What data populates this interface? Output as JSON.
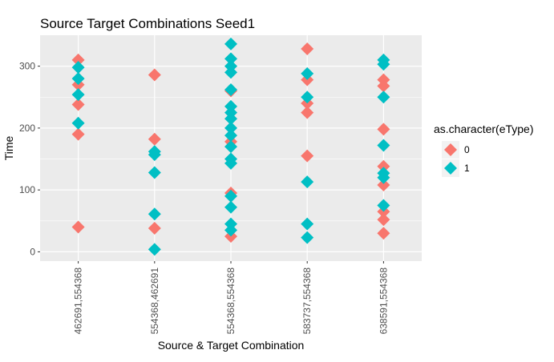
{
  "chart_data": {
    "type": "scatter",
    "title": "Source Target Combinations Seed1",
    "xlabel": "Source & Target Combination",
    "ylabel": "Time",
    "categories": [
      "462691,554368",
      "554368,462691",
      "554368,554368",
      "583737,554368",
      "638591,554368"
    ],
    "ylim": [
      -15,
      350
    ],
    "yticks": [
      0,
      100,
      200,
      300
    ],
    "grid": true,
    "legend": {
      "title": "as.character(eType)",
      "placement": "right",
      "entries": [
        {
          "label": "0",
          "color": "#F8766D"
        },
        {
          "label": "1",
          "color": "#00BFC4"
        }
      ]
    },
    "series": [
      {
        "name": "0",
        "color": "#F8766D",
        "points": [
          {
            "x": "462691,554368",
            "y": 310
          },
          {
            "x": "462691,554368",
            "y": 270
          },
          {
            "x": "462691,554368",
            "y": 238
          },
          {
            "x": "462691,554368",
            "y": 190
          },
          {
            "x": "462691,554368",
            "y": 40
          },
          {
            "x": "554368,462691",
            "y": 286
          },
          {
            "x": "554368,462691",
            "y": 182
          },
          {
            "x": "554368,462691",
            "y": 38
          },
          {
            "x": "554368,554368",
            "y": 260
          },
          {
            "x": "554368,554368",
            "y": 178
          },
          {
            "x": "554368,554368",
            "y": 95
          },
          {
            "x": "554368,554368",
            "y": 25
          },
          {
            "x": "583737,554368",
            "y": 328
          },
          {
            "x": "583737,554368",
            "y": 278
          },
          {
            "x": "583737,554368",
            "y": 240
          },
          {
            "x": "583737,554368",
            "y": 225
          },
          {
            "x": "583737,554368",
            "y": 155
          },
          {
            "x": "638591,554368",
            "y": 278
          },
          {
            "x": "638591,554368",
            "y": 268
          },
          {
            "x": "638591,554368",
            "y": 198
          },
          {
            "x": "638591,554368",
            "y": 138
          },
          {
            "x": "638591,554368",
            "y": 108
          },
          {
            "x": "638591,554368",
            "y": 65
          },
          {
            "x": "638591,554368",
            "y": 52
          },
          {
            "x": "638591,554368",
            "y": 30
          }
        ]
      },
      {
        "name": "1",
        "color": "#00BFC4",
        "points": [
          {
            "x": "462691,554368",
            "y": 298
          },
          {
            "x": "462691,554368",
            "y": 280
          },
          {
            "x": "462691,554368",
            "y": 254
          },
          {
            "x": "462691,554368",
            "y": 208
          },
          {
            "x": "554368,462691",
            "y": 162
          },
          {
            "x": "554368,462691",
            "y": 157
          },
          {
            "x": "554368,462691",
            "y": 128
          },
          {
            "x": "554368,462691",
            "y": 61
          },
          {
            "x": "554368,462691",
            "y": 4
          },
          {
            "x": "554368,554368",
            "y": 336
          },
          {
            "x": "554368,554368",
            "y": 312
          },
          {
            "x": "554368,554368",
            "y": 300
          },
          {
            "x": "554368,554368",
            "y": 290
          },
          {
            "x": "554368,554368",
            "y": 262
          },
          {
            "x": "554368,554368",
            "y": 235
          },
          {
            "x": "554368,554368",
            "y": 225
          },
          {
            "x": "554368,554368",
            "y": 215
          },
          {
            "x": "554368,554368",
            "y": 200
          },
          {
            "x": "554368,554368",
            "y": 188
          },
          {
            "x": "554368,554368",
            "y": 170
          },
          {
            "x": "554368,554368",
            "y": 150
          },
          {
            "x": "554368,554368",
            "y": 143
          },
          {
            "x": "554368,554368",
            "y": 90
          },
          {
            "x": "554368,554368",
            "y": 72
          },
          {
            "x": "554368,554368",
            "y": 45
          },
          {
            "x": "554368,554368",
            "y": 35
          },
          {
            "x": "583737,554368",
            "y": 288
          },
          {
            "x": "583737,554368",
            "y": 250
          },
          {
            "x": "583737,554368",
            "y": 113
          },
          {
            "x": "583737,554368",
            "y": 45
          },
          {
            "x": "583737,554368",
            "y": 23
          },
          {
            "x": "638591,554368",
            "y": 310
          },
          {
            "x": "638591,554368",
            "y": 303
          },
          {
            "x": "638591,554368",
            "y": 250
          },
          {
            "x": "638591,554368",
            "y": 172
          },
          {
            "x": "638591,554368",
            "y": 127
          },
          {
            "x": "638591,554368",
            "y": 120
          },
          {
            "x": "638591,554368",
            "y": 75
          }
        ]
      }
    ]
  }
}
